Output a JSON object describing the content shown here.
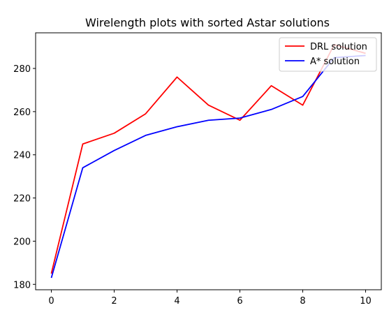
{
  "chart_data": {
    "type": "line",
    "title": "Wirelength plots with sorted Astar solutions",
    "xlabel": "",
    "ylabel": "",
    "x": [
      0,
      1,
      2,
      3,
      4,
      5,
      6,
      7,
      8,
      9,
      10
    ],
    "series": [
      {
        "name": "DRL solution",
        "color": "#ff0000",
        "values": [
          185,
          245,
          250,
          259,
          276,
          263,
          256,
          272,
          263,
          291,
          287
        ]
      },
      {
        "name": "A* solution",
        "color": "#0000ff",
        "values": [
          183,
          234,
          242,
          249,
          253,
          256,
          257,
          261,
          267,
          285,
          286
        ]
      }
    ],
    "xlim": [
      -0.5,
      10.5
    ],
    "ylim": [
      177.5,
      296.5
    ],
    "xticks": [
      0,
      2,
      4,
      6,
      8,
      10
    ],
    "yticks": [
      180,
      200,
      220,
      240,
      260,
      280
    ],
    "grid": false,
    "legend_position": "top-right"
  }
}
